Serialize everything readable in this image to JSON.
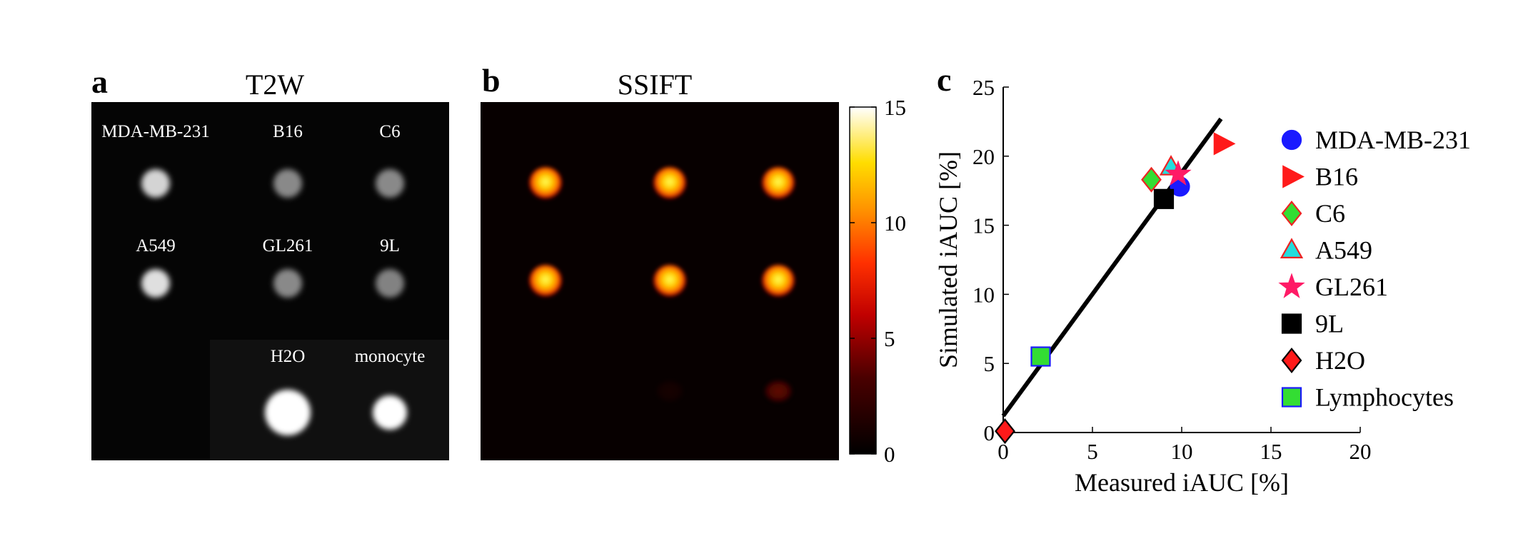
{
  "panel_a": {
    "label": "a",
    "title": "T2W",
    "cells": [
      {
        "name": "MDA-MB-231",
        "brightness": 0.8
      },
      {
        "name": "B16",
        "brightness": 0.45
      },
      {
        "name": "C6",
        "brightness": 0.45
      },
      {
        "name": "A549",
        "brightness": 0.85
      },
      {
        "name": "GL261",
        "brightness": 0.45
      },
      {
        "name": "9L",
        "brightness": 0.42
      },
      {
        "name": "",
        "brightness": 0
      },
      {
        "name": "H2O",
        "brightness": 1.0
      },
      {
        "name": "monocyte",
        "brightness": 1.0
      }
    ]
  },
  "panel_b": {
    "label": "b",
    "title": "SSIFT",
    "colorbar": {
      "min": 0,
      "max": 15,
      "ticks": [
        "15",
        "10",
        "5",
        "0"
      ]
    },
    "spots": [
      {
        "intensity": 0.78
      },
      {
        "intensity": 0.8
      },
      {
        "intensity": 0.8
      },
      {
        "intensity": 0.78
      },
      {
        "intensity": 0.8
      },
      {
        "intensity": 0.8
      },
      {
        "intensity": 0
      },
      {
        "intensity": 0.05
      },
      {
        "intensity": 0.28
      }
    ]
  },
  "panel_c": {
    "label": "c"
  },
  "chart_data": {
    "type": "scatter",
    "xlabel": "Measured iAUC [%]",
    "ylabel": "Simulated iAUC [%]",
    "xlim": [
      0,
      20
    ],
    "ylim": [
      0,
      25
    ],
    "xticks": [
      "0",
      "5",
      "10",
      "15",
      "20"
    ],
    "yticks": [
      "0",
      "5",
      "10",
      "15",
      "20",
      "25"
    ],
    "fit_line": {
      "x": [
        0,
        12.2
      ],
      "y": [
        1.2,
        22.7
      ]
    },
    "series": [
      {
        "name": "MDA-MB-231",
        "x": 9.9,
        "y": 17.8,
        "marker": "circle",
        "fill": "#1a1aff",
        "stroke": "#1a1aff"
      },
      {
        "name": "B16",
        "x": 12.3,
        "y": 20.9,
        "marker": "triangle-right",
        "fill": "#ff1a1a",
        "stroke": "#ff1a1a"
      },
      {
        "name": "C6",
        "x": 8.3,
        "y": 18.3,
        "marker": "diamond",
        "fill": "#33dd33",
        "stroke": "#ee2222"
      },
      {
        "name": "A549",
        "x": 9.4,
        "y": 19.2,
        "marker": "triangle-up",
        "fill": "#22dddd",
        "stroke": "#ee2222"
      },
      {
        "name": "GL261",
        "x": 9.8,
        "y": 18.7,
        "marker": "star",
        "fill": "#ff1a66",
        "stroke": "#ff1a66"
      },
      {
        "name": "9L",
        "x": 9.0,
        "y": 16.9,
        "marker": "square",
        "fill": "#000000",
        "stroke": "#000000"
      },
      {
        "name": "H2O",
        "x": 0.1,
        "y": 0.1,
        "marker": "diamond",
        "fill": "#ff1a1a",
        "stroke": "#000000"
      },
      {
        "name": "Lymphocytes",
        "x": 2.1,
        "y": 5.5,
        "marker": "square",
        "fill": "#33dd33",
        "stroke": "#1a1aff"
      }
    ]
  }
}
